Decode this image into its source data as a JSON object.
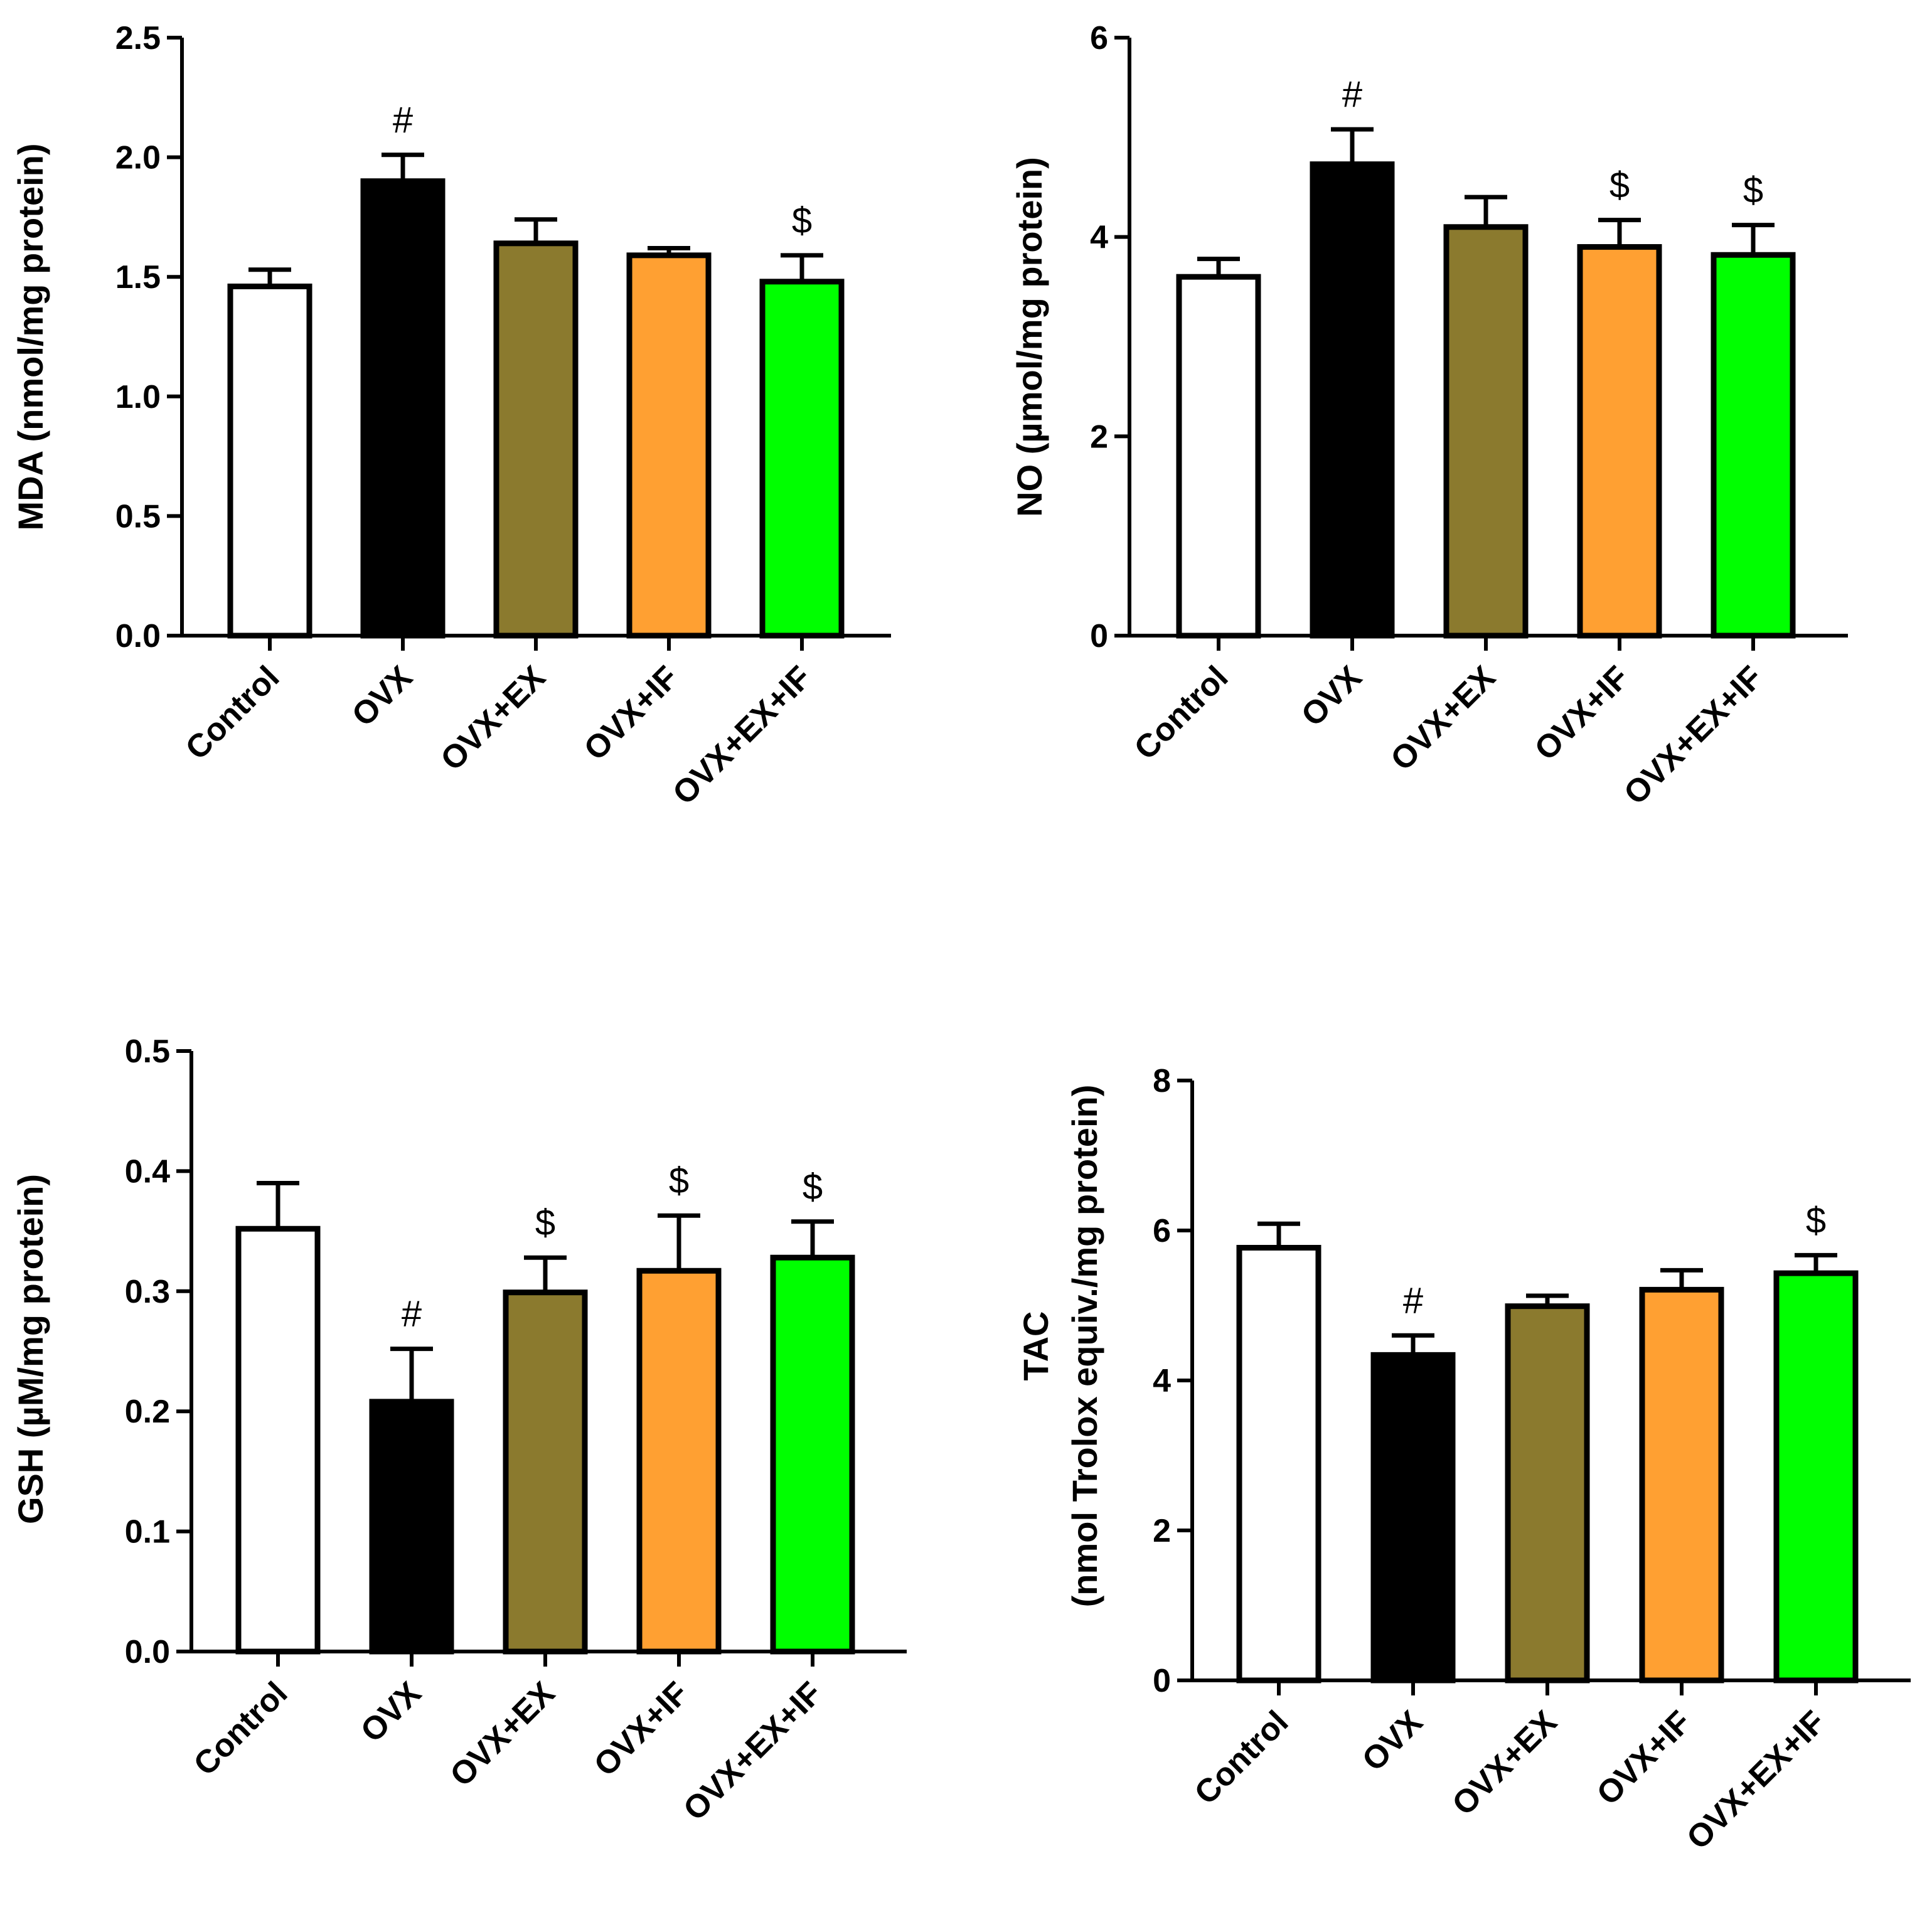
{
  "chart_data": [
    {
      "type": "bar",
      "id": "mda",
      "ylabel": "MDA (nmol/mg protein)",
      "categories": [
        "Control",
        "OVX",
        "OVX+EX",
        "OVX+IF",
        "OVX+EX+IF"
      ],
      "values": [
        1.46,
        1.9,
        1.64,
        1.59,
        1.48
      ],
      "errors": [
        0.07,
        0.11,
        0.1,
        0.03,
        0.11
      ],
      "annotations": [
        "",
        "#",
        "",
        "",
        "$"
      ],
      "ylim": [
        0,
        2.5
      ],
      "yticks": [
        0.0,
        0.5,
        1.0,
        1.5,
        2.0,
        2.5
      ],
      "yticklabels": [
        "0.0",
        "0.5",
        "1.0",
        "1.5",
        "2.0",
        "2.5"
      ]
    },
    {
      "type": "bar",
      "id": "no",
      "ylabel": "NO (µmol/mg protein)",
      "categories": [
        "Control",
        "OVX",
        "OVX+EX",
        "OVX+IF",
        "OVX+EX+IF"
      ],
      "values": [
        3.6,
        4.73,
        4.1,
        3.9,
        3.82
      ],
      "errors": [
        0.18,
        0.35,
        0.3,
        0.27,
        0.3
      ],
      "annotations": [
        "",
        "#",
        "",
        "$",
        "$"
      ],
      "ylim": [
        0,
        6
      ],
      "yticks": [
        0,
        2,
        4,
        6
      ],
      "yticklabels": [
        "0",
        "2",
        "4",
        "6"
      ]
    },
    {
      "type": "bar",
      "id": "gsh",
      "ylabel": "GSH (µM/mg protein)",
      "categories": [
        "Control",
        "OVX",
        "OVX+EX",
        "OVX+IF",
        "OVX+EX+IF"
      ],
      "values": [
        0.352,
        0.208,
        0.299,
        0.317,
        0.328
      ],
      "errors": [
        0.038,
        0.044,
        0.029,
        0.046,
        0.03
      ],
      "annotations": [
        "",
        "#",
        "$",
        "$",
        "$"
      ],
      "ylim": [
        0,
        0.5
      ],
      "yticks": [
        0.0,
        0.1,
        0.2,
        0.3,
        0.4,
        0.5
      ],
      "yticklabels": [
        "0.0",
        "0.1",
        "0.2",
        "0.3",
        "0.4",
        "0.5"
      ]
    },
    {
      "type": "bar",
      "id": "tac",
      "ylabel": "TAC",
      "ylabel2": "(nmol Trolox equiv./mg protein)",
      "categories": [
        "Control",
        "OVX",
        "OVX+EX",
        "OVX+IF",
        "OVX+EX+IF"
      ],
      "values": [
        5.77,
        4.34,
        4.99,
        5.21,
        5.43
      ],
      "errors": [
        0.32,
        0.26,
        0.14,
        0.26,
        0.24
      ],
      "annotations": [
        "",
        "#",
        "",
        "",
        "$"
      ],
      "ylim": [
        0,
        8
      ],
      "yticks": [
        0,
        2,
        4,
        6,
        8
      ],
      "yticklabels": [
        "0",
        "2",
        "4",
        "6",
        "8"
      ]
    }
  ],
  "colors": {
    "control": "#ffffff",
    "ovx": "#000000",
    "ovx_ex": "#8b7a2e",
    "ovx_if": "#ffa032",
    "ovx_ex_if": "#00ff00"
  }
}
